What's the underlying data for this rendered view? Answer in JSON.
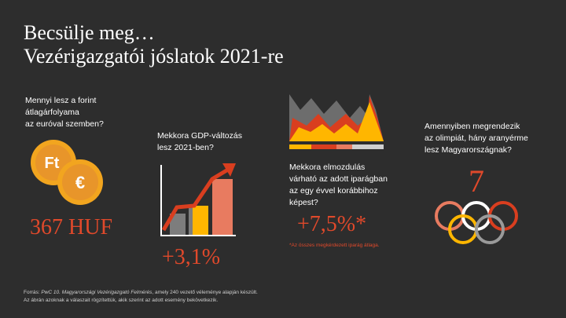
{
  "header": {
    "title_lines": [
      "Becsülje meg…",
      "Vezérigazgatói jóslatok 2021-re"
    ]
  },
  "panels": [
    {
      "question": [
        "Mennyi lesz a forint",
        "átlagárfolyama",
        "az euróval szemben?"
      ],
      "icon_labels": [
        "Ft",
        "€"
      ],
      "answer": "367 HUF"
    },
    {
      "question": [
        "Mekkora GDP-változás",
        "lesz 2021-ben?"
      ],
      "answer": "+3,1%"
    },
    {
      "question": [
        "Mekkora elmozdulás",
        "várható  az adott iparágban",
        "az egy évvel korábbihoz",
        "képest?"
      ],
      "answer": "+7,5%*",
      "note": "*Az összes megkérdezett iparág átlaga."
    },
    {
      "question": [
        "Amennyiben megrendezik",
        "az olimpiát, hány aranyérme",
        "lesz Magyarországnak?"
      ],
      "answer": "7"
    }
  ],
  "footer": {
    "line1": [
      "Forrás: ",
      "PwC 10. Magyarországi Vezérigazgató Felmérés",
      ", amely 240 vezető véleménye alapján készült."
    ],
    "line2": "Az ábrán azoknak a válaszait rögzítettük, akik szerint az adott esemény bekövetkezik."
  }
}
